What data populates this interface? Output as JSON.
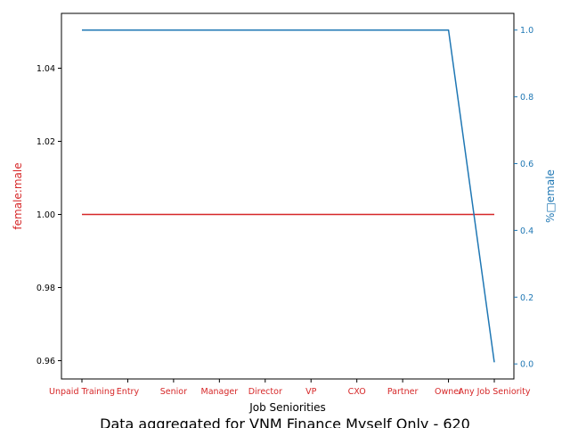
{
  "chart_data": {
    "type": "line",
    "title": "Data aggregated for VNM Finance Myself Only - 620",
    "xlabel": "Job Seniorities",
    "ylabel_left": "female:male",
    "ylabel_right": "%□emale",
    "categories": [
      "Unpaid Training",
      "Entry",
      "Senior",
      "Manager",
      "Director",
      "VP",
      "CXO",
      "Partner",
      "Owner",
      "Any Job Seniority"
    ],
    "series": [
      {
        "axis": "left",
        "color": "#d62728",
        "values": [
          1,
          1,
          1,
          1,
          1,
          1,
          1,
          1,
          1,
          1
        ]
      },
      {
        "axis": "right",
        "color": "#1f77b4",
        "values": [
          1,
          1,
          1,
          1,
          1,
          1,
          1,
          1,
          1,
          0.005
        ]
      }
    ],
    "ylim_left": [
      0.955,
      1.055
    ],
    "yticks_left": [
      "0.96",
      "0.98",
      "1.00",
      "1.02",
      "1.04"
    ],
    "yticks_left_values": [
      0.96,
      0.98,
      1.0,
      1.02,
      1.04
    ],
    "ylim_right": [
      -0.045,
      1.05
    ],
    "yticks_right": [
      "0.0",
      "0.2",
      "0.4",
      "0.6",
      "0.8",
      "1.0"
    ],
    "yticks_right_values": [
      0,
      0.2,
      0.4,
      0.6,
      0.8,
      1.0
    ],
    "colors": {
      "left_axis": "#d62728",
      "right_axis": "#1f77b4"
    },
    "grid": false
  }
}
